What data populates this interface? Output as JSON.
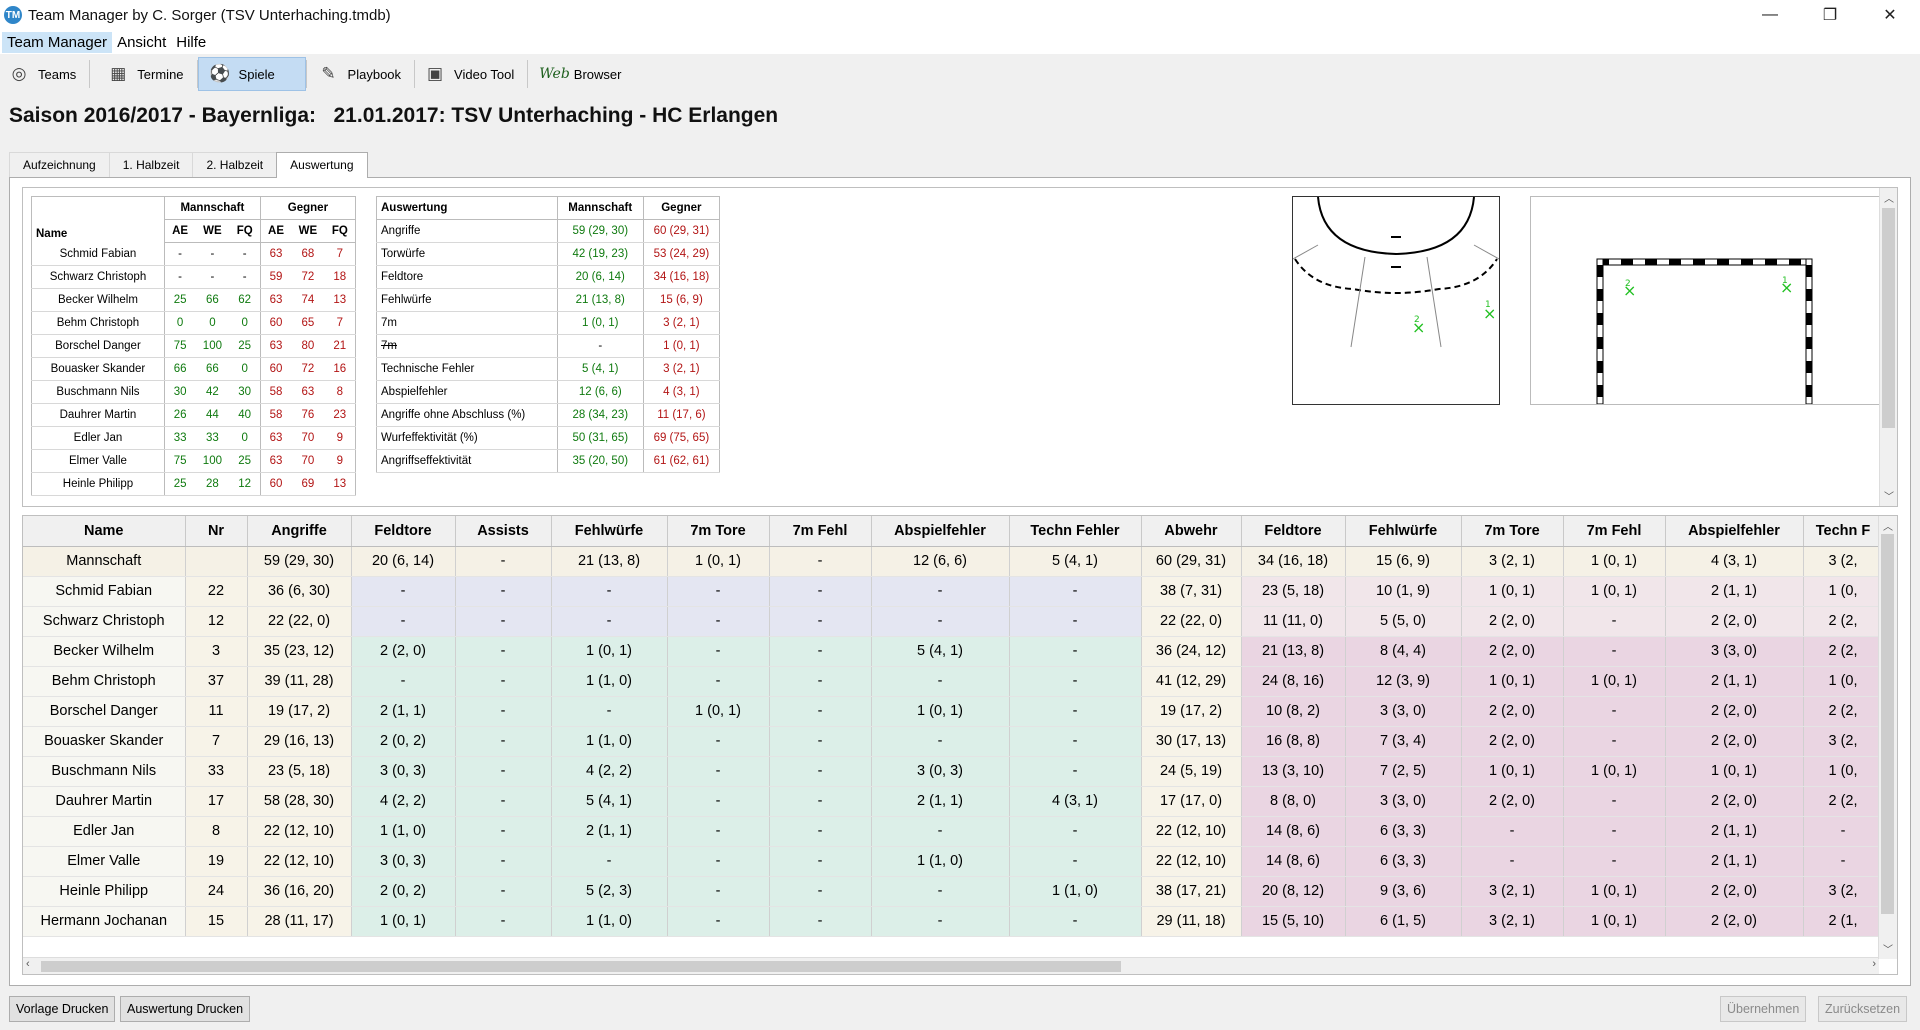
{
  "window": {
    "title": "Team Manager by C. Sorger (TSV Unterhaching.tmdb)",
    "minimize": "—",
    "maximize": "❐",
    "close": "✕"
  },
  "menu": [
    "Team Manager",
    "Ansicht",
    "Hilfe"
  ],
  "toolbar": [
    {
      "label": "Teams",
      "icon": "teams-icon"
    },
    {
      "label": "Termine",
      "icon": "calendar-icon"
    },
    {
      "label": "Spiele",
      "icon": "ball-icon"
    },
    {
      "label": "Playbook",
      "icon": "playbook-icon"
    },
    {
      "label": "Video Tool",
      "icon": "video-icon"
    },
    {
      "label": "Browser",
      "icon": "web-icon",
      "prefix": "Web"
    }
  ],
  "headline": "Saison 2016/2017 - Bayernliga:   21.01.2017: TSV Unterhaching - HC Erlangen",
  "tabs": [
    "Aufzeichnung",
    "1. Halbzeit",
    "2. Halbzeit",
    "Auswertung"
  ],
  "player_stats": {
    "group_team": "Mannschaft",
    "group_opp": "Gegner",
    "name_header": "Name",
    "cols": [
      "AE",
      "WE",
      "FQ",
      "AE",
      "WE",
      "FQ"
    ],
    "rows": [
      {
        "name": "Schmid Fabian",
        "v": [
          "-",
          "-",
          "-",
          "63",
          "68",
          "7"
        ]
      },
      {
        "name": "Schwarz Christoph",
        "v": [
          "-",
          "-",
          "-",
          "59",
          "72",
          "18"
        ]
      },
      {
        "name": "Becker Wilhelm",
        "v": [
          "25",
          "66",
          "62",
          "63",
          "74",
          "13"
        ]
      },
      {
        "name": "Behm Christoph",
        "v": [
          "0",
          "0",
          "0",
          "60",
          "65",
          "7"
        ]
      },
      {
        "name": "Borschel Danger",
        "v": [
          "75",
          "100",
          "25",
          "63",
          "80",
          "21"
        ]
      },
      {
        "name": "Bouasker Skander",
        "v": [
          "66",
          "66",
          "0",
          "60",
          "72",
          "16"
        ]
      },
      {
        "name": "Buschmann Nils",
        "v": [
          "30",
          "42",
          "30",
          "58",
          "63",
          "8"
        ]
      },
      {
        "name": "Dauhrer Martin",
        "v": [
          "26",
          "44",
          "40",
          "58",
          "76",
          "23"
        ]
      },
      {
        "name": "Edler Jan",
        "v": [
          "33",
          "33",
          "0",
          "63",
          "70",
          "9"
        ]
      },
      {
        "name": "Elmer Valle",
        "v": [
          "75",
          "100",
          "25",
          "63",
          "70",
          "9"
        ]
      },
      {
        "name": "Heinle Philipp",
        "v": [
          "25",
          "28",
          "12",
          "60",
          "69",
          "13"
        ]
      }
    ]
  },
  "summary": {
    "headers": [
      "Auswertung",
      "Mannschaft",
      "Gegner"
    ],
    "rows": [
      {
        "label": "Angriffe",
        "team": "59 (29, 30)",
        "opp": "60 (29, 31)"
      },
      {
        "label": "Torwürfe",
        "team": "42 (19, 23)",
        "opp": "53 (24, 29)"
      },
      {
        "label": "Feldtore",
        "team": "20 (6, 14)",
        "opp": "34 (16, 18)"
      },
      {
        "label": "Fehlwürfe",
        "team": "21 (13, 8)",
        "opp": "15 (6, 9)"
      },
      {
        "label": "7m",
        "team": "1 (0, 1)",
        "opp": "3 (2, 1)"
      },
      {
        "label": "7m",
        "team": "-",
        "opp": "1 (0, 1)",
        "strike": true
      },
      {
        "label": "Technische Fehler",
        "team": "5 (4, 1)",
        "opp": "3 (2, 1)"
      },
      {
        "label": "Abspielfehler",
        "team": "12 (6, 6)",
        "opp": "4 (3, 1)"
      },
      {
        "label": "Angriffe ohne Abschluss (%)",
        "team": "28 (34, 23)",
        "opp": "11 (17, 6)"
      },
      {
        "label": "Wurfeffektivität (%)",
        "team": "50 (31, 65)",
        "opp": "69 (75, 65)"
      },
      {
        "label": "Angriffseffektivität",
        "team": "35 (20, 50)",
        "opp": "61 (62, 61)"
      }
    ]
  },
  "court_markers": {
    "m1": "1",
    "m2": "2"
  },
  "goal_markers": {
    "m1": "1",
    "m2": "2"
  },
  "big_table": {
    "headers": [
      "Name",
      "Nr",
      "Angriffe",
      "Feldtore",
      "Assists",
      "Fehlwürfe",
      "7m Tore",
      "7m Fehl",
      "Abspielfehler",
      "Techn Fehler",
      "Abwehr",
      "Feldtore",
      "Fehlwürfe",
      "7m Tore",
      "7m Fehl",
      "Abspielfehler",
      "Techn F"
    ],
    "rows": [
      [
        "Mannschaft",
        "",
        "59 (29, 30)",
        "20 (6, 14)",
        "-",
        "21 (13, 8)",
        "1 (0, 1)",
        "-",
        "12 (6, 6)",
        "5 (4, 1)",
        "60 (29, 31)",
        "34 (16, 18)",
        "15 (6, 9)",
        "3 (2, 1)",
        "1 (0, 1)",
        "4 (3, 1)",
        "3 (2,"
      ],
      [
        "Schmid Fabian",
        "22",
        "36 (6, 30)",
        "-",
        "-",
        "-",
        "-",
        "-",
        "-",
        "-",
        "38 (7, 31)",
        "23 (5, 18)",
        "10 (1, 9)",
        "1 (0, 1)",
        "1 (0, 1)",
        "2 (1, 1)",
        "1 (0,"
      ],
      [
        "Schwarz Christoph",
        "12",
        "22 (22, 0)",
        "-",
        "-",
        "-",
        "-",
        "-",
        "-",
        "-",
        "22 (22, 0)",
        "11 (11, 0)",
        "5 (5, 0)",
        "2 (2, 0)",
        "-",
        "2 (2, 0)",
        "2 (2,"
      ],
      [
        "Becker Wilhelm",
        "3",
        "35 (23, 12)",
        "2 (2, 0)",
        "-",
        "1 (0, 1)",
        "-",
        "-",
        "5 (4, 1)",
        "-",
        "36 (24, 12)",
        "21 (13, 8)",
        "8 (4, 4)",
        "2 (2, 0)",
        "-",
        "3 (3, 0)",
        "2 (2,"
      ],
      [
        "Behm Christoph",
        "37",
        "39 (11, 28)",
        "-",
        "-",
        "1 (1, 0)",
        "-",
        "-",
        "-",
        "-",
        "41 (12, 29)",
        "24 (8, 16)",
        "12 (3, 9)",
        "1 (0, 1)",
        "1 (0, 1)",
        "2 (1, 1)",
        "1 (0,"
      ],
      [
        "Borschel Danger",
        "11",
        "19 (17, 2)",
        "2 (1, 1)",
        "-",
        "-",
        "1 (0, 1)",
        "-",
        "1 (0, 1)",
        "-",
        "19 (17, 2)",
        "10 (8, 2)",
        "3 (3, 0)",
        "2 (2, 0)",
        "-",
        "2 (2, 0)",
        "2 (2,"
      ],
      [
        "Bouasker Skander",
        "7",
        "29 (16, 13)",
        "2 (0, 2)",
        "-",
        "1 (1, 0)",
        "-",
        "-",
        "-",
        "-",
        "30 (17, 13)",
        "16 (8, 8)",
        "7 (3, 4)",
        "2 (2, 0)",
        "-",
        "2 (2, 0)",
        "3 (2,"
      ],
      [
        "Buschmann Nils",
        "33",
        "23 (5, 18)",
        "3 (0, 3)",
        "-",
        "4 (2, 2)",
        "-",
        "-",
        "3 (0, 3)",
        "-",
        "24 (5, 19)",
        "13 (3, 10)",
        "7 (2, 5)",
        "1 (0, 1)",
        "1 (0, 1)",
        "1 (0, 1)",
        "1 (0,"
      ],
      [
        "Dauhrer Martin",
        "17",
        "58 (28, 30)",
        "4 (2, 2)",
        "-",
        "5 (4, 1)",
        "-",
        "-",
        "2 (1, 1)",
        "4 (3, 1)",
        "17 (17, 0)",
        "8 (8, 0)",
        "3 (3, 0)",
        "2 (2, 0)",
        "-",
        "2 (2, 0)",
        "2 (2,"
      ],
      [
        "Edler Jan",
        "8",
        "22 (12, 10)",
        "1 (1, 0)",
        "-",
        "2 (1, 1)",
        "-",
        "-",
        "-",
        "-",
        "22 (12, 10)",
        "14 (8, 6)",
        "6 (3, 3)",
        "-",
        "-",
        "2 (1, 1)",
        "-"
      ],
      [
        "Elmer Valle",
        "19",
        "22 (12, 10)",
        "3 (0, 3)",
        "-",
        "-",
        "-",
        "-",
        "1 (1, 0)",
        "-",
        "22 (12, 10)",
        "14 (8, 6)",
        "6 (3, 3)",
        "-",
        "-",
        "2 (1, 1)",
        "-"
      ],
      [
        "Heinle Philipp",
        "24",
        "36 (16, 20)",
        "2 (0, 2)",
        "-",
        "5 (2, 3)",
        "-",
        "-",
        "-",
        "1 (1, 0)",
        "38 (17, 21)",
        "20 (8, 12)",
        "9 (3, 6)",
        "3 (2, 1)",
        "1 (0, 1)",
        "2 (2, 0)",
        "3 (2,"
      ],
      [
        "Hermann Jochanan",
        "15",
        "28 (11, 17)",
        "1 (0, 1)",
        "-",
        "1 (1, 0)",
        "-",
        "-",
        "-",
        "-",
        "29 (11, 18)",
        "15 (5, 10)",
        "6 (1, 5)",
        "3 (2, 1)",
        "1 (0, 1)",
        "2 (2, 0)",
        "2 (1,"
      ]
    ]
  },
  "buttons": {
    "print_template": "Vorlage Drucken",
    "print_eval": "Auswertung Drucken",
    "apply": "Übernehmen",
    "reset": "Zurücksetzen"
  },
  "colors": {
    "green": "#0f7a0f",
    "red": "#b21414",
    "marker": "#22c022"
  }
}
